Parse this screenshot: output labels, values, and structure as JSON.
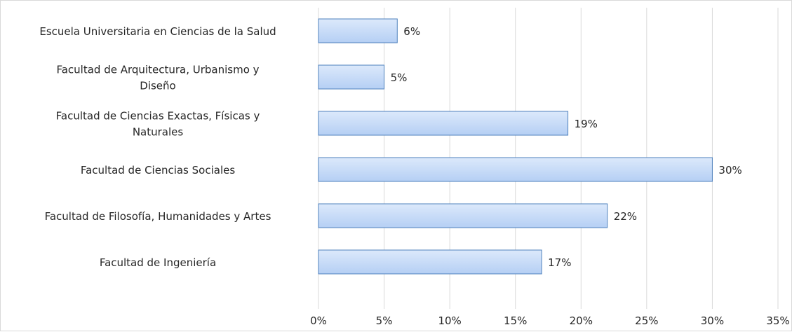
{
  "chart_data": {
    "type": "bar",
    "orientation": "horizontal",
    "title": "",
    "xlabel": "",
    "ylabel": "",
    "categories": [
      "Escuela Universitaria en Ciencias de la Salud",
      "Facultad de Arquitectura, Urbanismo y Diseño",
      "Facultad de Ciencias Exactas, Físicas y Naturales",
      "Facultad de Ciencias Sociales",
      "Facultad de Filosofía, Humanidades y Artes",
      "Facultad de Ingeniería"
    ],
    "category_lines": [
      [
        "Escuela Universitaria en Ciencias de la Salud"
      ],
      [
        "Facultad de Arquitectura, Urbanismo y",
        "Diseño"
      ],
      [
        "Facultad de Ciencias Exactas, Físicas y",
        "Naturales"
      ],
      [
        "Facultad de Ciencias Sociales"
      ],
      [
        "Facultad de Filosofía, Humanidades y Artes"
      ],
      [
        "Facultad de Ingeniería"
      ]
    ],
    "values": [
      6,
      5,
      19,
      30,
      22,
      17
    ],
    "data_labels": [
      "6%",
      "5%",
      "19%",
      "30%",
      "22%",
      "17%"
    ],
    "x_ticks": [
      0,
      5,
      10,
      15,
      20,
      25,
      30,
      35
    ],
    "x_tick_labels": [
      "0%",
      "5%",
      "10%",
      "15%",
      "20%",
      "25%",
      "30%",
      "35%"
    ],
    "xlim": [
      0,
      35
    ],
    "grid": "vertical",
    "legend": "none",
    "colors": {
      "bar_fill_top": "#dce9fb",
      "bar_fill_bottom": "#b5cff4",
      "bar_stroke": "#4f81bd",
      "grid": "#d9d9d9"
    }
  }
}
